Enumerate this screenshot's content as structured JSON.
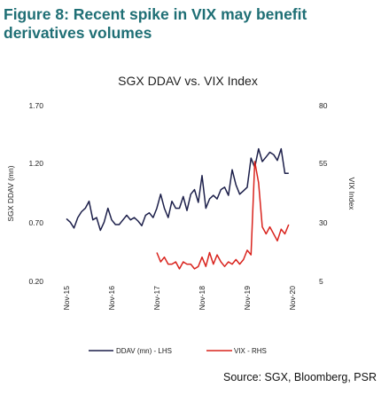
{
  "figure": {
    "title": "Figure 8: Recent spike in VIX may benefit derivatives volumes",
    "source": "Source: SGX, Bloomberg, PSR"
  },
  "colors": {
    "title": "#1f6f75",
    "ddav": "#1c1f4a",
    "vix": "#d9231d"
  },
  "chart_data": {
    "type": "line",
    "title": "SGX DDAV vs. VIX Index",
    "ylabel_left": "SGX DDAV (mn)",
    "ylabel_right": "VIX Index",
    "ylim_left": [
      0.2,
      1.7
    ],
    "ylim_right": [
      5,
      80
    ],
    "yticks_left": [
      "1.70",
      "1.20",
      "0.70",
      "0.20"
    ],
    "yticks_right": [
      "80",
      "55",
      "30",
      "5"
    ],
    "x_ticks": [
      "Nov-15",
      "Nov-16",
      "Nov-17",
      "Nov-18",
      "Nov-19",
      "Nov-20"
    ],
    "x_tick_index": [
      0,
      12,
      24,
      36,
      48,
      60
    ],
    "legend": [
      "DDAV (mn) - LHS",
      "VIX - RHS"
    ],
    "series": [
      {
        "name": "DDAV (mn) - LHS",
        "axis": "left",
        "values": [
          0.73,
          0.7,
          0.65,
          0.74,
          0.79,
          0.82,
          0.88,
          0.72,
          0.74,
          0.63,
          0.7,
          0.82,
          0.72,
          0.68,
          0.68,
          0.72,
          0.76,
          0.72,
          0.74,
          0.71,
          0.67,
          0.76,
          0.78,
          0.74,
          0.82,
          0.94,
          0.82,
          0.74,
          0.88,
          0.82,
          0.82,
          0.92,
          0.8,
          0.94,
          0.98,
          0.87,
          1.1,
          0.82,
          0.9,
          0.93,
          0.9,
          0.98,
          1.0,
          0.93,
          1.15,
          1.02,
          0.94,
          0.97,
          1.0,
          1.25,
          1.17,
          1.33,
          1.22,
          1.26,
          1.3,
          1.28,
          1.23,
          1.33,
          1.12,
          1.12
        ]
      },
      {
        "name": "VIX - RHS",
        "axis": "right",
        "values": [
          null,
          null,
          null,
          null,
          null,
          null,
          null,
          null,
          null,
          null,
          null,
          null,
          null,
          null,
          null,
          null,
          null,
          null,
          null,
          null,
          null,
          null,
          null,
          null,
          17,
          13,
          15,
          12,
          12,
          13,
          10,
          13,
          12,
          12,
          10,
          11,
          15,
          11,
          17,
          12,
          16,
          13,
          11,
          13,
          12,
          14,
          12,
          14,
          18,
          16,
          56,
          47,
          28,
          25,
          28,
          25,
          22,
          27,
          25,
          29
        ]
      }
    ]
  }
}
